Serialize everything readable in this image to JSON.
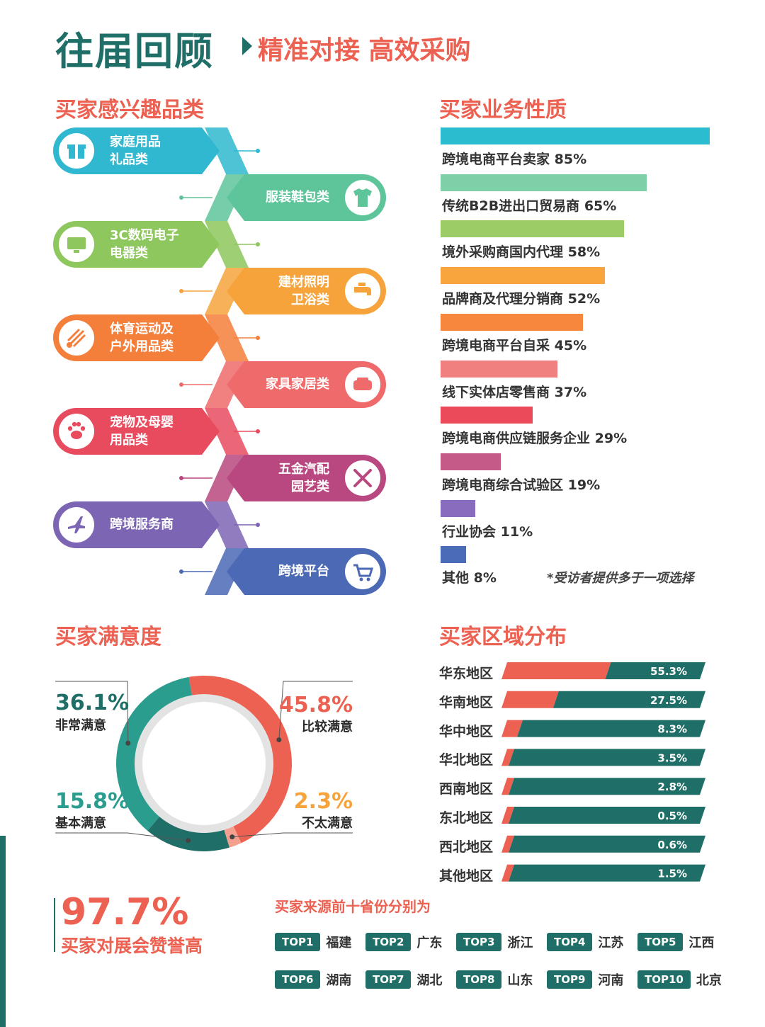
{
  "header": {
    "title": "往届回顾",
    "subtitle": "精准对接 高效采购"
  },
  "categories_section": {
    "title": "买家感兴趣品类",
    "items": [
      {
        "label": "家庭用品\n礼品类",
        "icon": "gift-icon",
        "color": "#2fb8cf",
        "side": "left"
      },
      {
        "label": "服装鞋包类",
        "icon": "tshirt-icon",
        "color": "#5ec49a",
        "side": "right"
      },
      {
        "label": "3C数码电子\n电器类",
        "icon": "monitor-icon",
        "color": "#8dc75d",
        "side": "left"
      },
      {
        "label": "建材照明\n卫浴类",
        "icon": "faucet-icon",
        "color": "#f6a33b",
        "side": "right"
      },
      {
        "label": "体育运动及\n户外用品类",
        "icon": "shuttlecock-icon",
        "color": "#f47f3a",
        "side": "left"
      },
      {
        "label": "家具家居类",
        "icon": "sofa-icon",
        "color": "#ef6b6b",
        "side": "right"
      },
      {
        "label": "宠物及母婴\n用品类",
        "icon": "paw-icon",
        "color": "#e84b5e",
        "side": "left"
      },
      {
        "label": "五金汽配\n园艺类",
        "icon": "tools-icon",
        "color": "#b8487f",
        "side": "right"
      },
      {
        "label": "跨境服务商",
        "icon": "airplane-icon",
        "color": "#7c65b3",
        "side": "left"
      },
      {
        "label": "跨境平台",
        "icon": "cart-icon",
        "color": "#4b69b5",
        "side": "right"
      }
    ]
  },
  "business_section": {
    "title": "买家业务性质",
    "note": "*受访者提供多于一项选择"
  },
  "satisfaction_section": {
    "title": "买家满意度"
  },
  "region_section": {
    "title": "买家区域分布"
  },
  "praise": {
    "percent": "97.7%",
    "text": "买家对展会赞誉高"
  },
  "top_provinces": {
    "heading": "买家来源前十省份分别为",
    "items": [
      {
        "rank": "TOP1",
        "province": "福建"
      },
      {
        "rank": "TOP2",
        "province": "广东"
      },
      {
        "rank": "TOP3",
        "province": "浙江"
      },
      {
        "rank": "TOP4",
        "province": "江苏"
      },
      {
        "rank": "TOP5",
        "province": "江西"
      },
      {
        "rank": "TOP6",
        "province": "湖南"
      },
      {
        "rank": "TOP7",
        "province": "湖北"
      },
      {
        "rank": "TOP8",
        "province": "山东"
      },
      {
        "rank": "TOP9",
        "province": "河南"
      },
      {
        "rank": "TOP10",
        "province": "北京"
      }
    ]
  },
  "chart_data": [
    {
      "type": "bar",
      "orientation": "horizontal",
      "title": "买家业务性质",
      "xlabel": "",
      "ylabel": "",
      "xlim": [
        0,
        100
      ],
      "categories": [
        "跨境电商平台卖家",
        "传统B2B进出口贸易商",
        "境外采购商国内代理",
        "品牌商及代理分销商",
        "跨境电商平台自采",
        "线下实体店零售商",
        "跨境电商供应链服务企业",
        "跨境电商综合试验区",
        "行业协会",
        "其他"
      ],
      "values": [
        85,
        65,
        58,
        52,
        45,
        37,
        29,
        19,
        11,
        8
      ],
      "value_labels": [
        "85%",
        "65%",
        "58%",
        "52%",
        "45%",
        "37%",
        "29%",
        "19%",
        "11%",
        "8%"
      ],
      "colors": [
        "#2bbccf",
        "#7fcfa8",
        "#9ccc65",
        "#f9a53e",
        "#f6873d",
        "#f08080",
        "#ea4a5a",
        "#c45a86",
        "#8a6cbf",
        "#4a6cb8"
      ],
      "grid": false
    },
    {
      "type": "pie",
      "variant": "donut",
      "title": "买家满意度",
      "categories": [
        "比较满意",
        "不太满意",
        "基本满意",
        "非常满意"
      ],
      "values": [
        45.8,
        2.3,
        15.8,
        36.1
      ],
      "value_labels": [
        "45.8%",
        "2.3%",
        "15.8%",
        "36.1%"
      ],
      "colors": [
        "#ec6151",
        "#f5a08f",
        "#1f6f68",
        "#2a9d8f"
      ],
      "label_colors": [
        "#ec6151",
        "#f6a33b",
        "#2a9d8f",
        "#1f6f68"
      ]
    },
    {
      "type": "bar",
      "orientation": "horizontal",
      "stacked": true,
      "title": "买家区域分布",
      "categories": [
        "华东地区",
        "华南地区",
        "华中地区",
        "华北地区",
        "西南地区",
        "东北地区",
        "西北地区",
        "其他地区"
      ],
      "values": [
        55.3,
        27.5,
        8.3,
        3.5,
        2.8,
        0.5,
        0.6,
        1.5
      ],
      "value_labels": [
        "55.3%",
        "27.5%",
        "8.3%",
        "3.5%",
        "2.8%",
        "0.5%",
        "0.6%",
        "1.5%"
      ],
      "colors": {
        "share": "#ec6151",
        "remainder": "#1f6f68"
      },
      "grid": false
    }
  ]
}
